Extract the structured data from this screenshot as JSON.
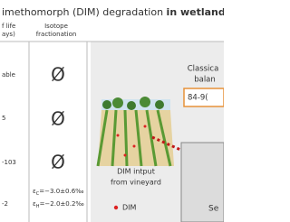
{
  "header": {
    "title": "imethomorph (DIM) degradation",
    "title_bold": "in wetland"
  },
  "table": {
    "headers": [
      [
        "f life",
        "ays)"
      ],
      [
        "Isotope",
        "fractionation"
      ]
    ],
    "rows": [
      [
        "able",
        "Ø"
      ],
      [
        "5",
        "Ø"
      ],
      [
        "-103",
        "Ø"
      ],
      [
        "-2",
        [
          {
            "symbol": "ε",
            "sub": "C",
            "text": "=−3.0±0.6‰"
          },
          {
            "symbol": "ε",
            "sub": "H",
            "text": "=−2.0±0.2‰"
          }
        ]
      ]
    ]
  },
  "panel": {
    "caption": [
      "DIM intput",
      "from vineyard"
    ],
    "legend": "DIM"
  },
  "right": {
    "title": [
      "Classica",
      "balan"
    ],
    "range": "84-9(",
    "box": "Se"
  }
}
